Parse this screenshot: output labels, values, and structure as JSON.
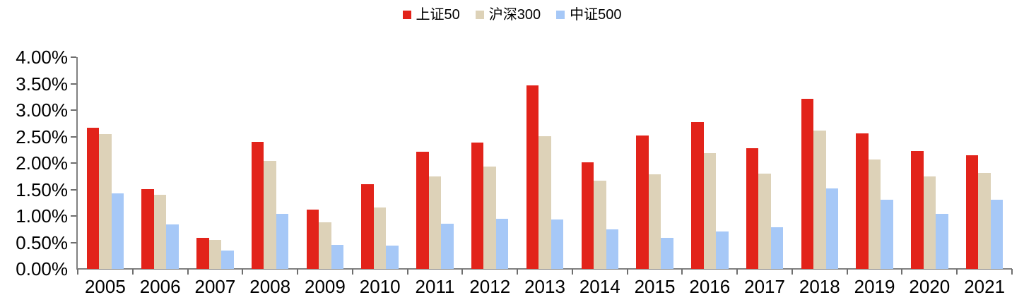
{
  "legend": {
    "items": [
      {
        "key": "sz50",
        "label": "上证50",
        "color": "#e2231a"
      },
      {
        "key": "hs300",
        "label": "沪深300",
        "color": "#ddd2b8"
      },
      {
        "key": "zz500",
        "label": "中证500",
        "color": "#a6c8f7"
      }
    ]
  },
  "chart_data": {
    "type": "bar",
    "title": "",
    "xlabel": "",
    "ylabel": "",
    "categories": [
      "2005",
      "2006",
      "2007",
      "2008",
      "2009",
      "2010",
      "2011",
      "2012",
      "2013",
      "2014",
      "2015",
      "2016",
      "2017",
      "2018",
      "2019",
      "2020",
      "2021"
    ],
    "series": [
      {
        "name": "上证50",
        "key": "sz50",
        "color": "#e2231a",
        "values": [
          2.67,
          1.51,
          0.58,
          2.4,
          1.12,
          1.6,
          2.21,
          2.39,
          3.46,
          2.01,
          2.52,
          2.77,
          2.28,
          3.21,
          2.56,
          2.23,
          2.15
        ]
      },
      {
        "name": "沪深300",
        "key": "hs300",
        "color": "#ddd2b8",
        "values": [
          2.55,
          1.4,
          0.55,
          2.04,
          0.88,
          1.16,
          1.74,
          1.93,
          2.5,
          1.67,
          1.78,
          2.18,
          1.8,
          2.61,
          2.07,
          1.74,
          1.81
        ]
      },
      {
        "name": "中证500",
        "key": "zz500",
        "color": "#a6c8f7",
        "values": [
          1.42,
          0.84,
          0.34,
          1.04,
          0.45,
          0.44,
          0.85,
          0.95,
          0.93,
          0.75,
          0.59,
          0.7,
          0.78,
          1.52,
          1.3,
          1.04,
          1.3
        ]
      }
    ],
    "ylim": [
      0,
      4
    ],
    "ytick_step": 0.5,
    "ytick_labels": [
      "0.00%",
      "0.50%",
      "1.00%",
      "1.50%",
      "2.00%",
      "2.50%",
      "3.00%",
      "3.50%",
      "4.00%"
    ],
    "value_unit": "percent",
    "grid": false,
    "legend_position": "top-center",
    "axis_color": "#808080"
  }
}
